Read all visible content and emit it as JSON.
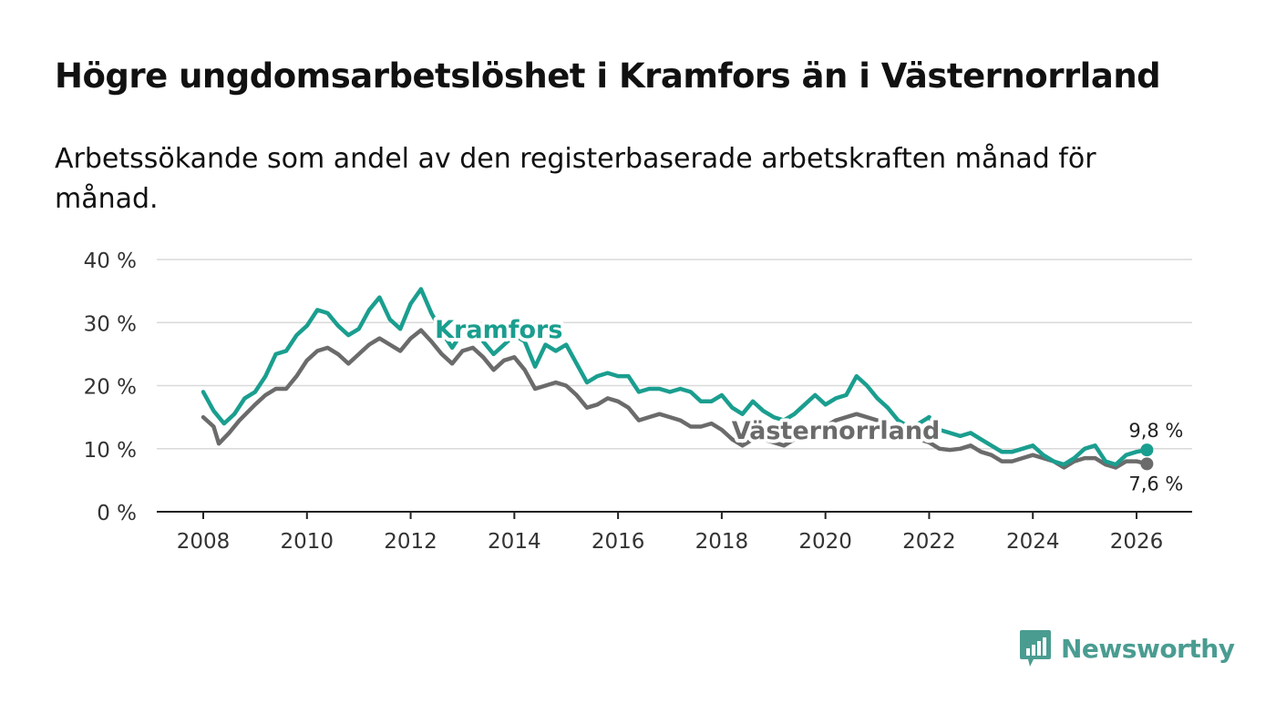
{
  "title": "Högre ungdomsarbetslöshet i Kramfors än i Västernorrland",
  "subtitle": "Arbetssökande som andel av den registerbaserade arbetskraften månad för månad.",
  "brand": {
    "name": "Newsworthy",
    "icon": "newsworthy-logo-icon",
    "color": "#4a9c91"
  },
  "chart_data": {
    "type": "line",
    "title": "Högre ungdomsarbetslöshet i Kramfors än i Västernorrland",
    "xlabel": "",
    "ylabel": "",
    "xlim": [
      2007.8,
      2027.2
    ],
    "ylim": [
      0,
      40
    ],
    "y_ticks": [
      0,
      10,
      20,
      30,
      40
    ],
    "y_tick_labels": [
      "0 %",
      "10 %",
      "20 %",
      "30 %",
      "40 %"
    ],
    "x_ticks": [
      2008,
      2010,
      2012,
      2014,
      2016,
      2018,
      2020,
      2022,
      2024,
      2026
    ],
    "x_tick_labels": [
      "2008",
      "2010",
      "2012",
      "2014",
      "2016",
      "2018",
      "2020",
      "2022",
      "2024",
      "2026"
    ],
    "grid": true,
    "series": [
      {
        "name": "Kramfors",
        "color": "#1a9e8f",
        "end_label": "9,8 %",
        "points": [
          [
            2008.0,
            19.0
          ],
          [
            2008.2,
            16.0
          ],
          [
            2008.4,
            14.0
          ],
          [
            2008.6,
            15.5
          ],
          [
            2008.8,
            18.0
          ],
          [
            2009.0,
            19.0
          ],
          [
            2009.2,
            21.5
          ],
          [
            2009.4,
            25.0
          ],
          [
            2009.6,
            25.5
          ],
          [
            2009.8,
            28.0
          ],
          [
            2010.0,
            29.5
          ],
          [
            2010.2,
            32.0
          ],
          [
            2010.4,
            31.5
          ],
          [
            2010.6,
            29.5
          ],
          [
            2010.8,
            28.0
          ],
          [
            2011.0,
            29.0
          ],
          [
            2011.2,
            32.0
          ],
          [
            2011.4,
            34.0
          ],
          [
            2011.6,
            30.5
          ],
          [
            2011.8,
            29.0
          ],
          [
            2012.0,
            33.0
          ],
          [
            2012.2,
            35.3
          ],
          [
            2012.4,
            31.5
          ],
          [
            2012.6,
            28.5
          ],
          [
            2012.8,
            26.0
          ],
          [
            2013.0,
            28.5
          ],
          [
            2013.2,
            29.5
          ],
          [
            2013.4,
            27.0
          ],
          [
            2013.6,
            25.0
          ],
          [
            2013.8,
            26.5
          ],
          [
            2014.0,
            28.0
          ],
          [
            2014.2,
            27.0
          ],
          [
            2014.4,
            23.0
          ],
          [
            2014.6,
            26.5
          ],
          [
            2014.8,
            25.5
          ],
          [
            2015.0,
            26.5
          ],
          [
            2015.2,
            23.5
          ],
          [
            2015.4,
            20.5
          ],
          [
            2015.6,
            21.5
          ],
          [
            2015.8,
            22.0
          ],
          [
            2016.0,
            21.5
          ],
          [
            2016.2,
            21.5
          ],
          [
            2016.4,
            19.0
          ],
          [
            2016.6,
            19.5
          ],
          [
            2016.8,
            19.5
          ],
          [
            2017.0,
            19.0
          ],
          [
            2017.2,
            19.5
          ],
          [
            2017.4,
            19.0
          ],
          [
            2017.6,
            17.5
          ],
          [
            2017.8,
            17.5
          ],
          [
            2018.0,
            18.5
          ],
          [
            2018.2,
            16.5
          ],
          [
            2018.4,
            15.5
          ],
          [
            2018.6,
            17.5
          ],
          [
            2018.8,
            16.0
          ],
          [
            2019.0,
            15.0
          ],
          [
            2019.2,
            14.5
          ],
          [
            2019.4,
            15.5
          ],
          [
            2019.6,
            17.0
          ],
          [
            2019.8,
            18.5
          ],
          [
            2020.0,
            17.0
          ],
          [
            2020.2,
            18.0
          ],
          [
            2020.4,
            18.5
          ],
          [
            2020.6,
            21.5
          ],
          [
            2020.8,
            20.0
          ],
          [
            2021.0,
            18.0
          ],
          [
            2021.2,
            16.5
          ],
          [
            2021.4,
            14.5
          ],
          [
            2021.6,
            13.5
          ],
          [
            2021.8,
            14.0
          ],
          [
            2022.0,
            15.0
          ],
          [
            2022.2,
            13.0
          ],
          [
            2022.4,
            12.5
          ],
          [
            2022.6,
            12.0
          ],
          [
            2022.8,
            12.5
          ],
          [
            2023.0,
            11.5
          ],
          [
            2023.2,
            10.5
          ],
          [
            2023.4,
            9.5
          ],
          [
            2023.6,
            9.5
          ],
          [
            2023.8,
            10.0
          ],
          [
            2024.0,
            10.5
          ],
          [
            2024.2,
            9.0
          ],
          [
            2024.4,
            8.0
          ],
          [
            2024.6,
            7.5
          ],
          [
            2024.8,
            8.5
          ],
          [
            2025.0,
            10.0
          ],
          [
            2025.2,
            10.5
          ],
          [
            2025.4,
            8.0
          ],
          [
            2025.6,
            7.5
          ],
          [
            2025.8,
            9.0
          ],
          [
            2026.0,
            9.5
          ],
          [
            2026.2,
            9.8
          ]
        ]
      },
      {
        "name": "Västernorrland",
        "color": "#6b6b6b",
        "end_label": "7,6 %",
        "points": [
          [
            2008.0,
            15.0
          ],
          [
            2008.2,
            13.5
          ],
          [
            2008.3,
            10.8
          ],
          [
            2008.5,
            12.5
          ],
          [
            2008.7,
            14.5
          ],
          [
            2009.0,
            17.0
          ],
          [
            2009.2,
            18.5
          ],
          [
            2009.4,
            19.5
          ],
          [
            2009.6,
            19.5
          ],
          [
            2009.8,
            21.5
          ],
          [
            2010.0,
            24.0
          ],
          [
            2010.2,
            25.5
          ],
          [
            2010.4,
            26.0
          ],
          [
            2010.6,
            25.0
          ],
          [
            2010.8,
            23.5
          ],
          [
            2011.0,
            25.0
          ],
          [
            2011.2,
            26.5
          ],
          [
            2011.4,
            27.5
          ],
          [
            2011.6,
            26.5
          ],
          [
            2011.8,
            25.5
          ],
          [
            2012.0,
            27.5
          ],
          [
            2012.2,
            28.8
          ],
          [
            2012.4,
            27.0
          ],
          [
            2012.6,
            25.0
          ],
          [
            2012.8,
            23.5
          ],
          [
            2013.0,
            25.5
          ],
          [
            2013.2,
            26.0
          ],
          [
            2013.4,
            24.5
          ],
          [
            2013.6,
            22.5
          ],
          [
            2013.8,
            24.0
          ],
          [
            2014.0,
            24.5
          ],
          [
            2014.2,
            22.5
          ],
          [
            2014.4,
            19.5
          ],
          [
            2014.6,
            20.0
          ],
          [
            2014.8,
            20.5
          ],
          [
            2015.0,
            20.0
          ],
          [
            2015.2,
            18.5
          ],
          [
            2015.4,
            16.5
          ],
          [
            2015.6,
            17.0
          ],
          [
            2015.8,
            18.0
          ],
          [
            2016.0,
            17.5
          ],
          [
            2016.2,
            16.5
          ],
          [
            2016.4,
            14.5
          ],
          [
            2016.6,
            15.0
          ],
          [
            2016.8,
            15.5
          ],
          [
            2017.0,
            15.0
          ],
          [
            2017.2,
            14.5
          ],
          [
            2017.4,
            13.5
          ],
          [
            2017.6,
            13.5
          ],
          [
            2017.8,
            14.0
          ],
          [
            2018.0,
            13.0
          ],
          [
            2018.2,
            11.5
          ],
          [
            2018.4,
            10.5
          ],
          [
            2018.6,
            11.5
          ],
          [
            2018.8,
            11.5
          ],
          [
            2019.0,
            11.0
          ],
          [
            2019.2,
            10.5
          ],
          [
            2019.4,
            11.5
          ],
          [
            2019.6,
            12.5
          ],
          [
            2019.8,
            13.0
          ],
          [
            2020.0,
            13.5
          ],
          [
            2020.2,
            14.5
          ],
          [
            2020.4,
            15.0
          ],
          [
            2020.6,
            15.5
          ],
          [
            2020.8,
            15.0
          ],
          [
            2021.0,
            14.5
          ],
          [
            2021.2,
            13.5
          ],
          [
            2021.4,
            12.5
          ],
          [
            2021.6,
            12.0
          ],
          [
            2021.8,
            11.5
          ],
          [
            2022.0,
            11.0
          ],
          [
            2022.2,
            10.0
          ],
          [
            2022.4,
            9.8
          ],
          [
            2022.6,
            10.0
          ],
          [
            2022.8,
            10.5
          ],
          [
            2023.0,
            9.5
          ],
          [
            2023.2,
            9.0
          ],
          [
            2023.4,
            8.0
          ],
          [
            2023.6,
            8.0
          ],
          [
            2023.8,
            8.5
          ],
          [
            2024.0,
            9.0
          ],
          [
            2024.2,
            8.5
          ],
          [
            2024.4,
            8.0
          ],
          [
            2024.6,
            7.0
          ],
          [
            2024.8,
            8.0
          ],
          [
            2025.0,
            8.5
          ],
          [
            2025.2,
            8.5
          ],
          [
            2025.4,
            7.5
          ],
          [
            2025.6,
            7.0
          ],
          [
            2025.8,
            8.0
          ],
          [
            2026.0,
            8.0
          ],
          [
            2026.2,
            7.6
          ]
        ]
      }
    ],
    "annotations": [
      {
        "text": "Kramfors",
        "series": "Kramfors",
        "x": 2013.7,
        "y": 29
      },
      {
        "text": "Västernorrland",
        "series": "Västernorrland",
        "x": 2020.2,
        "y": 13
      }
    ]
  }
}
